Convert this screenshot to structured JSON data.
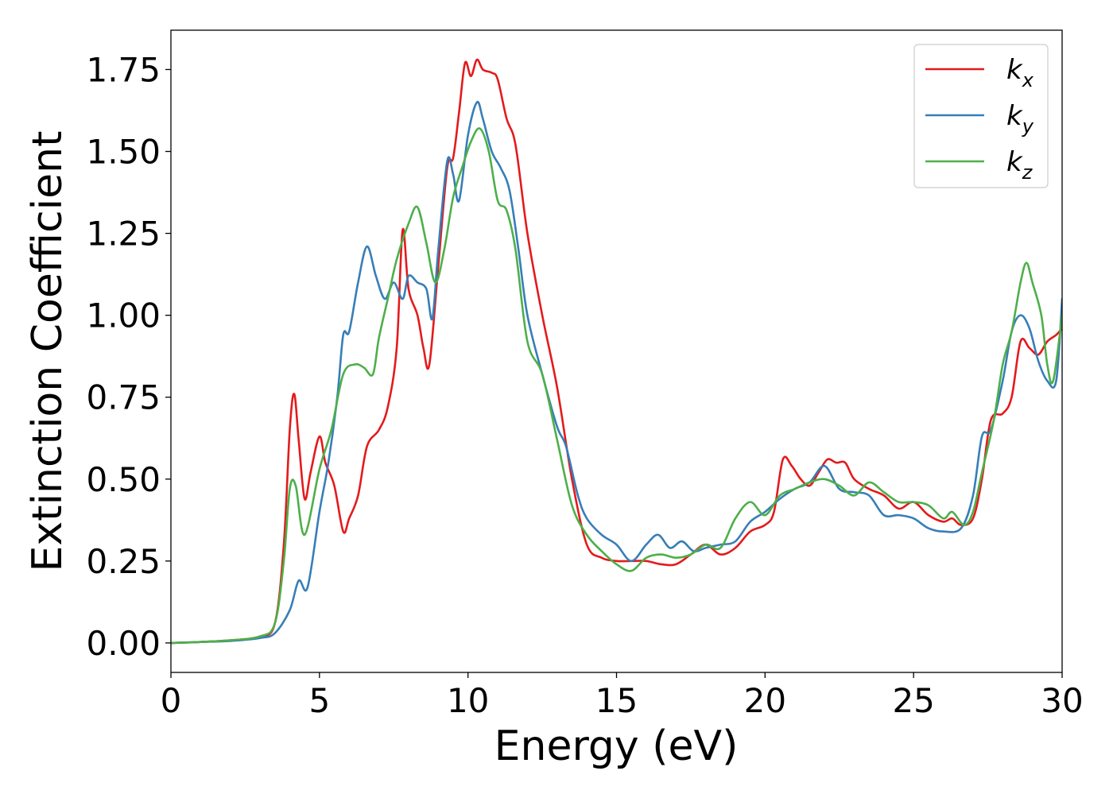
{
  "chart_data": {
    "type": "line",
    "title": "",
    "xlabel": "Energy (eV)",
    "ylabel": "Extinction Coefficient",
    "xlim": [
      0,
      30
    ],
    "ylim": [
      -0.09,
      1.87
    ],
    "xticks": [
      0,
      5,
      10,
      15,
      20,
      25,
      30
    ],
    "xtick_labels": [
      "0",
      "5",
      "10",
      "15",
      "20",
      "25",
      "30"
    ],
    "yticks": [
      0.0,
      0.25,
      0.5,
      0.75,
      1.0,
      1.25,
      1.5,
      1.75
    ],
    "ytick_labels": [
      "0.00",
      "0.25",
      "0.50",
      "0.75",
      "1.00",
      "1.25",
      "1.50",
      "1.75"
    ],
    "grid": false,
    "legend_position": "top-right",
    "series": [
      {
        "name": "k_x",
        "label_base": "k",
        "label_sub": "x",
        "color": "#e41a1c",
        "x": [
          0,
          1,
          2,
          3,
          3.5,
          3.8,
          4.0,
          4.15,
          4.3,
          4.5,
          4.7,
          5.0,
          5.2,
          5.5,
          5.8,
          6.0,
          6.3,
          6.6,
          7.0,
          7.3,
          7.6,
          7.8,
          8.0,
          8.3,
          8.5,
          8.7,
          9.0,
          9.3,
          9.5,
          9.7,
          9.9,
          10.1,
          10.3,
          10.5,
          10.8,
          11.0,
          11.3,
          11.6,
          12.0,
          12.5,
          13.0,
          13.5,
          14.0,
          14.5,
          15.0,
          15.5,
          16.0,
          16.5,
          17.0,
          17.5,
          18.0,
          18.5,
          19.0,
          19.5,
          20.0,
          20.3,
          20.6,
          20.9,
          21.2,
          21.5,
          21.8,
          22.1,
          22.4,
          22.7,
          23.0,
          23.5,
          24.0,
          24.5,
          25.0,
          25.5,
          26.0,
          26.3,
          26.6,
          27.0,
          27.3,
          27.6,
          28.0,
          28.3,
          28.6,
          28.9,
          29.2,
          29.5,
          29.8,
          30.0
        ],
        "y": [
          0.0,
          0.003,
          0.008,
          0.02,
          0.06,
          0.3,
          0.65,
          0.76,
          0.62,
          0.44,
          0.52,
          0.63,
          0.55,
          0.48,
          0.34,
          0.38,
          0.45,
          0.6,
          0.65,
          0.72,
          0.9,
          1.26,
          1.08,
          1.0,
          0.9,
          0.85,
          1.15,
          1.45,
          1.48,
          1.62,
          1.77,
          1.73,
          1.78,
          1.75,
          1.74,
          1.72,
          1.6,
          1.52,
          1.25,
          1.0,
          0.78,
          0.5,
          0.3,
          0.26,
          0.25,
          0.25,
          0.25,
          0.24,
          0.24,
          0.27,
          0.3,
          0.27,
          0.29,
          0.34,
          0.36,
          0.4,
          0.56,
          0.54,
          0.5,
          0.48,
          0.52,
          0.56,
          0.55,
          0.55,
          0.5,
          0.47,
          0.45,
          0.41,
          0.43,
          0.39,
          0.37,
          0.38,
          0.36,
          0.38,
          0.5,
          0.68,
          0.7,
          0.75,
          0.92,
          0.9,
          0.88,
          0.92,
          0.94,
          0.96
        ]
      },
      {
        "name": "k_y",
        "label_base": "k",
        "label_sub": "y",
        "color": "#377eb8",
        "x": [
          0,
          1,
          2,
          3,
          3.5,
          4.0,
          4.3,
          4.6,
          5.0,
          5.3,
          5.6,
          5.8,
          6.0,
          6.3,
          6.6,
          6.9,
          7.2,
          7.5,
          7.8,
          8.0,
          8.3,
          8.6,
          8.8,
          9.0,
          9.3,
          9.5,
          9.7,
          10.0,
          10.3,
          10.5,
          10.8,
          11.1,
          11.4,
          11.7,
          12.0,
          12.5,
          13.0,
          13.3,
          13.7,
          14.0,
          14.5,
          15.0,
          15.5,
          16.0,
          16.4,
          16.8,
          17.2,
          17.6,
          18.0,
          18.5,
          19.0,
          19.5,
          20.0,
          20.5,
          21.0,
          21.5,
          22.0,
          22.5,
          23.0,
          23.5,
          24.0,
          24.5,
          25.0,
          25.5,
          26.0,
          26.6,
          27.0,
          27.3,
          27.6,
          28.0,
          28.3,
          28.6,
          28.9,
          29.2,
          29.5,
          29.8,
          30.0
        ],
        "y": [
          0.0,
          0.003,
          0.006,
          0.015,
          0.03,
          0.1,
          0.19,
          0.17,
          0.4,
          0.55,
          0.75,
          0.94,
          0.95,
          1.1,
          1.21,
          1.12,
          1.05,
          1.1,
          1.05,
          1.12,
          1.1,
          1.08,
          0.99,
          1.2,
          1.47,
          1.43,
          1.35,
          1.55,
          1.65,
          1.6,
          1.5,
          1.45,
          1.38,
          1.2,
          1.0,
          0.82,
          0.66,
          0.6,
          0.45,
          0.38,
          0.33,
          0.3,
          0.25,
          0.3,
          0.33,
          0.29,
          0.31,
          0.28,
          0.29,
          0.3,
          0.31,
          0.37,
          0.4,
          0.44,
          0.47,
          0.49,
          0.54,
          0.47,
          0.46,
          0.45,
          0.39,
          0.39,
          0.38,
          0.35,
          0.34,
          0.35,
          0.45,
          0.63,
          0.65,
          0.8,
          0.95,
          1.0,
          0.96,
          0.86,
          0.8,
          0.8,
          1.05
        ]
      },
      {
        "name": "k_z",
        "label_base": "k",
        "label_sub": "z",
        "color": "#4daf4a",
        "x": [
          0,
          1,
          2,
          3,
          3.5,
          3.8,
          4.0,
          4.2,
          4.5,
          5.0,
          5.4,
          5.8,
          6.2,
          6.5,
          6.8,
          7.0,
          7.3,
          7.6,
          8.0,
          8.3,
          8.6,
          8.9,
          9.2,
          9.5,
          9.8,
          10.1,
          10.4,
          10.7,
          11.0,
          11.3,
          11.6,
          12.0,
          12.5,
          13.0,
          13.5,
          14.0,
          14.5,
          15.0,
          15.5,
          16.0,
          16.5,
          17.0,
          17.5,
          18.0,
          18.5,
          19.0,
          19.5,
          20.0,
          20.5,
          21.0,
          21.5,
          22.0,
          22.5,
          23.0,
          23.5,
          24.0,
          24.5,
          25.0,
          25.5,
          26.0,
          26.3,
          26.7,
          27.0,
          27.3,
          27.7,
          28.0,
          28.3,
          28.6,
          28.8,
          29.0,
          29.3,
          29.5,
          29.7,
          30.0
        ],
        "y": [
          0.0,
          0.003,
          0.008,
          0.02,
          0.06,
          0.25,
          0.47,
          0.48,
          0.33,
          0.53,
          0.65,
          0.82,
          0.85,
          0.84,
          0.82,
          0.93,
          1.05,
          1.17,
          1.28,
          1.33,
          1.22,
          1.1,
          1.2,
          1.36,
          1.45,
          1.53,
          1.57,
          1.5,
          1.35,
          1.32,
          1.2,
          0.92,
          0.82,
          0.62,
          0.42,
          0.33,
          0.28,
          0.24,
          0.22,
          0.26,
          0.27,
          0.26,
          0.27,
          0.3,
          0.29,
          0.38,
          0.43,
          0.39,
          0.45,
          0.47,
          0.49,
          0.5,
          0.48,
          0.45,
          0.49,
          0.46,
          0.43,
          0.43,
          0.42,
          0.38,
          0.4,
          0.36,
          0.4,
          0.52,
          0.68,
          0.85,
          0.95,
          1.1,
          1.16,
          1.1,
          1.0,
          0.85,
          0.8,
          1.0
        ]
      }
    ]
  }
}
